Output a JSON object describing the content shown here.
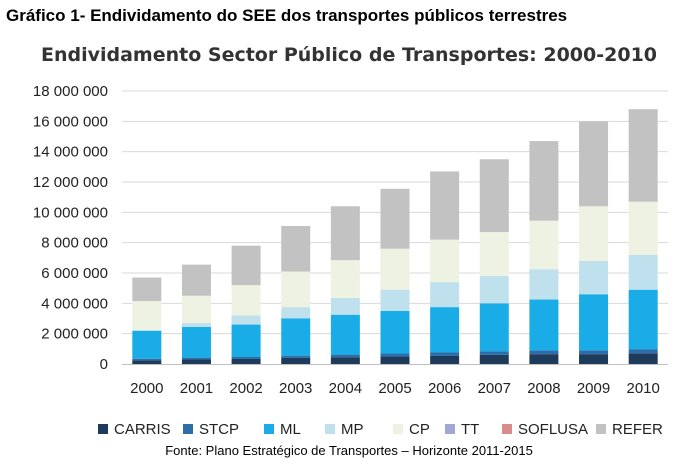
{
  "caption": "Gráfico 1- Endividamento do SEE dos transportes públicos terrestres",
  "source": "Fonte: Plano Estratégico de Transportes – Horizonte 2011-2015",
  "chart_data": {
    "type": "bar",
    "stacked": true,
    "title": "Endividamento Sector Público de Transportes: 2000-2010",
    "xlabel": "",
    "ylabel": "",
    "ylim": [
      0,
      18000000
    ],
    "yticks": [
      0,
      2000000,
      4000000,
      6000000,
      8000000,
      10000000,
      12000000,
      14000000,
      16000000,
      18000000
    ],
    "ytick_labels": [
      "0",
      "2 000 000",
      "4 000 000",
      "6 000 000",
      "8 000 000",
      "10 000 000",
      "12 000 000",
      "14 000 000",
      "16 000 000",
      "18 000 000"
    ],
    "grid": "horizontal",
    "legend_position": "bottom",
    "categories": [
      "2000",
      "2001",
      "2002",
      "2003",
      "2004",
      "2005",
      "2006",
      "2007",
      "2008",
      "2009",
      "2010"
    ],
    "series": [
      {
        "name": "CARRIS",
        "color": "#1f3b5c",
        "values": [
          250000,
          300000,
          330000,
          400000,
          450000,
          500000,
          550000,
          600000,
          650000,
          650000,
          700000
        ]
      },
      {
        "name": "STCP",
        "color": "#2e6ea8",
        "values": [
          100000,
          120000,
          130000,
          150000,
          170000,
          190000,
          210000,
          230000,
          250000,
          250000,
          280000
        ]
      },
      {
        "name": "ML",
        "color": "#1aace6",
        "values": [
          1850000,
          2030000,
          2140000,
          2450000,
          2630000,
          2810000,
          2990000,
          3170000,
          3350000,
          3700000,
          3920000
        ]
      },
      {
        "name": "MP",
        "color": "#bee1ed",
        "values": [
          0,
          250000,
          600000,
          750000,
          1100000,
          1400000,
          1650000,
          1800000,
          2000000,
          2200000,
          2300000
        ]
      },
      {
        "name": "CP",
        "color": "#eef2e2",
        "values": [
          1950000,
          1800000,
          2000000,
          2350000,
          2500000,
          2700000,
          2800000,
          2900000,
          3200000,
          3600000,
          3500000
        ]
      },
      {
        "name": "TT",
        "color": "#a3a7d6",
        "values": [
          0,
          0,
          0,
          0,
          0,
          0,
          0,
          0,
          0,
          0,
          0
        ]
      },
      {
        "name": "SOFLUSA",
        "color": "#d98c8c",
        "values": [
          0,
          0,
          0,
          0,
          0,
          0,
          0,
          0,
          0,
          0,
          0
        ]
      },
      {
        "name": "REFER",
        "color": "#c2c2c2",
        "values": [
          1550000,
          2050000,
          2600000,
          3000000,
          3550000,
          3950000,
          4500000,
          4800000,
          5250000,
          5600000,
          6100000
        ]
      }
    ]
  }
}
